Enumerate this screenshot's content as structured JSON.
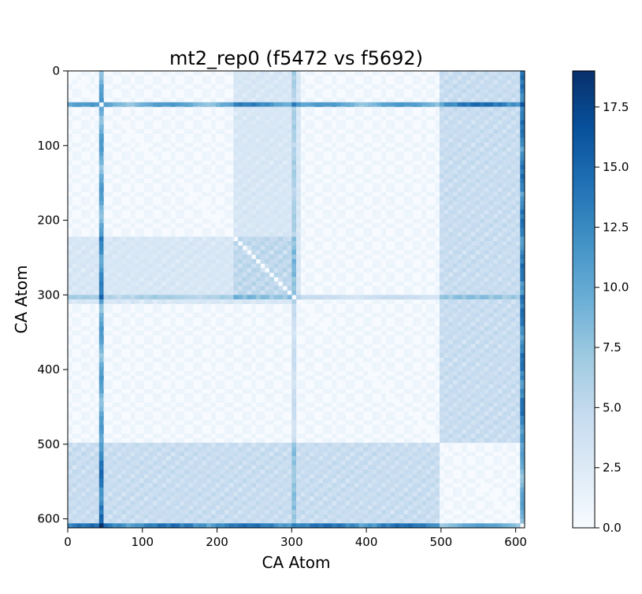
{
  "chart_data": {
    "type": "heatmap",
    "title": "mt2_rep0 (f5472 vs f5692)",
    "xlabel": "CA Atom",
    "ylabel": "CA Atom",
    "size": 612,
    "xlim": [
      0,
      612
    ],
    "ylim": [
      612,
      0
    ],
    "x_ticks": [
      0,
      100,
      200,
      300,
      400,
      500,
      600
    ],
    "y_ticks": [
      0,
      100,
      200,
      300,
      400,
      500,
      600
    ],
    "colorbar": {
      "min": 0.0,
      "max": 19.0,
      "ticks": [
        "0.0",
        "2.5",
        "5.0",
        "7.5",
        "10.0",
        "12.5",
        "15.0",
        "17.5"
      ],
      "tick_values": [
        0.0,
        2.5,
        5.0,
        7.5,
        10.0,
        12.5,
        15.0,
        17.5
      ],
      "colormap": "Blues",
      "color_low": "#f7fbff",
      "color_high": "#08306b"
    },
    "features": {
      "strong_lines": [
        {
          "index": 45,
          "level": 0.55
        },
        {
          "index": 305,
          "level": 0.4
        },
        {
          "index": 608,
          "level": 0.7
        }
      ],
      "blocks": [
        {
          "rows": [
            500,
            612
          ],
          "cols": [
            0,
            500
          ],
          "level": 0.22
        },
        {
          "rows": [
            0,
            500
          ],
          "cols": [
            500,
            612
          ],
          "level": 0.22
        },
        {
          "rows": [
            220,
            310
          ],
          "cols": [
            0,
            305
          ],
          "level": 0.13
        },
        {
          "rows": [
            0,
            305
          ],
          "cols": [
            220,
            310
          ],
          "level": 0.13
        }
      ]
    }
  }
}
